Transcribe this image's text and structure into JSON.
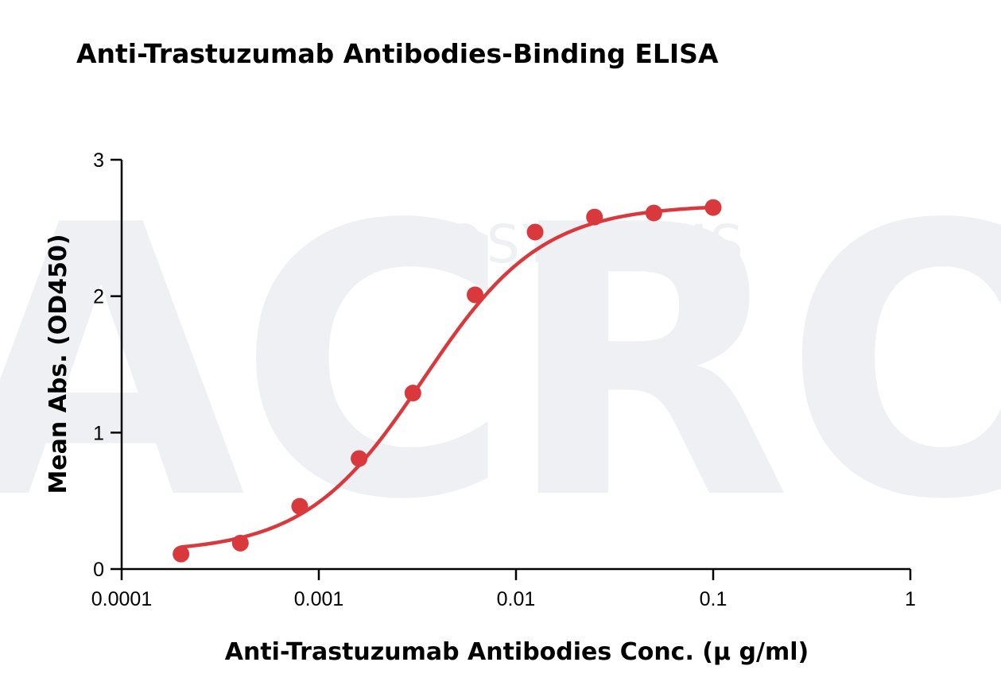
{
  "chart_data": {
    "type": "scatter",
    "title": "Anti-Trastuzumab Antibodies-Binding ELISA",
    "xlabel": "Anti-Trastuzumab Antibodies Conc. (μ g/ml)",
    "ylabel": "Mean Abs. (OD450)",
    "x_scale": "log",
    "xlim": [
      0.0001,
      1
    ],
    "ylim": [
      0,
      3
    ],
    "x_ticks": [
      {
        "value": 0.0001,
        "label": "0.0001"
      },
      {
        "value": 0.001,
        "label": "0.001"
      },
      {
        "value": 0.01,
        "label": "0.01"
      },
      {
        "value": 0.1,
        "label": "0.1"
      },
      {
        "value": 1,
        "label": "1"
      }
    ],
    "y_ticks": [
      {
        "value": 0,
        "label": "0"
      },
      {
        "value": 1,
        "label": "1"
      },
      {
        "value": 2,
        "label": "2"
      },
      {
        "value": 3,
        "label": "3"
      }
    ],
    "grid": false,
    "series": [
      {
        "color": "#d9393c",
        "points": [
          {
            "x": 0.0002,
            "y": 0.11
          },
          {
            "x": 0.0004,
            "y": 0.19
          },
          {
            "x": 0.0008,
            "y": 0.46
          },
          {
            "x": 0.0016,
            "y": 0.81
          },
          {
            "x": 0.003,
            "y": 1.29
          },
          {
            "x": 0.0062,
            "y": 2.01
          },
          {
            "x": 0.0125,
            "y": 2.47
          },
          {
            "x": 0.025,
            "y": 2.58
          },
          {
            "x": 0.05,
            "y": 2.61
          },
          {
            "x": 0.1,
            "y": 2.65
          }
        ]
      }
    ],
    "fit_curve": {
      "model": "4PL",
      "bottom": 0.12,
      "top": 2.67,
      "ec50": 0.0034,
      "hill": 1.45,
      "x_range": [
        0.0002,
        0.1
      ],
      "color": "#d9393c"
    }
  },
  "watermark": {
    "brand": "ACRO",
    "subtitle": "BIOSYSTEMS"
  }
}
